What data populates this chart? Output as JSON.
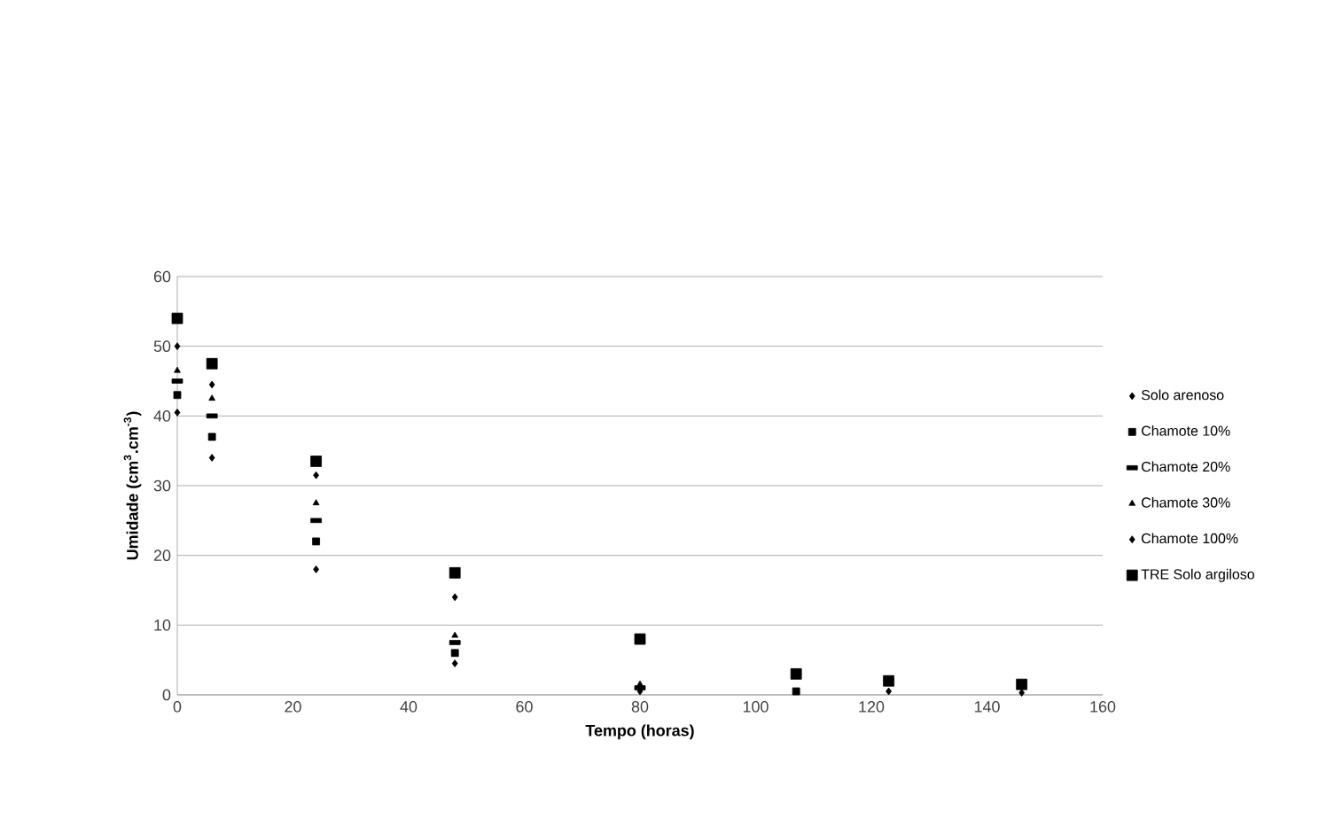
{
  "chart_data": {
    "type": "scatter",
    "xlabel": "Tempo (horas)",
    "ylabel": "Umidade (cm$^{3}$.cm$^{-3}$)",
    "x": [
      0,
      6,
      24,
      48,
      80,
      107,
      123,
      146
    ],
    "series": [
      {
        "name": "Solo arenoso",
        "color": "#000000",
        "marker": "diamond",
        "values": [
          40.5,
          34,
          18,
          4.5,
          0.5,
          null,
          0.5,
          0.3
        ]
      },
      {
        "name": "Chamote 10%",
        "color": "#000000",
        "marker": "square",
        "values": [
          43,
          37,
          22,
          6,
          null,
          0.5,
          null,
          null
        ]
      },
      {
        "name": "Chamote 20%",
        "color": "#000000",
        "values": [
          45,
          40,
          25,
          7.5,
          1,
          null,
          null,
          null
        ]
      },
      {
        "name": "Chamote 30%",
        "color": "#000000",
        "marker": "triangle",
        "values": [
          46.5,
          42.5,
          27.5,
          8.5,
          1.5,
          null,
          null,
          null
        ]
      },
      {
        "name": "Chamote 100%",
        "color": "#000000",
        "marker": "diamond",
        "values": [
          50,
          44.5,
          31.5,
          14,
          null,
          null,
          null,
          null
        ]
      },
      {
        "name": "TRE Solo argiloso",
        "color": "#000000",
        "marker": "square",
        "values": [
          54,
          47.5,
          33.5,
          17.5,
          8,
          3,
          2,
          1.5
        ]
      }
    ],
    "xlim": [
      0,
      160
    ],
    "xticks": [
      0,
      20,
      40,
      60,
      80,
      100,
      120,
      140,
      160
    ],
    "ylim": [
      0,
      60
    ],
    "yticks": [
      0,
      10,
      20,
      30,
      40,
      50,
      60
    ],
    "grid": "y",
    "legend": "right"
  }
}
